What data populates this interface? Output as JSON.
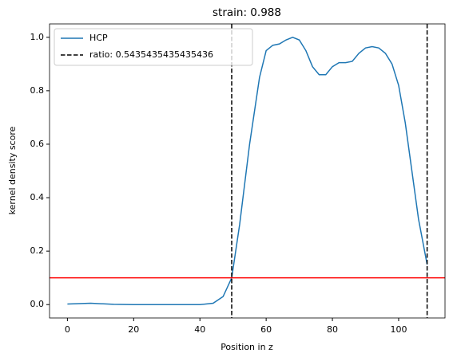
{
  "chart_data": {
    "type": "line",
    "title": "strain: 0.988",
    "x_label": "Position in z",
    "y_label": "kernel density score",
    "x": [
      0,
      7,
      14,
      20,
      30,
      40,
      44,
      47,
      49.6,
      52,
      55,
      58,
      60,
      62,
      64,
      66,
      68,
      70,
      72,
      74,
      76,
      78,
      80,
      82,
      84,
      86,
      88,
      90,
      92,
      94,
      96,
      98,
      100,
      102,
      104,
      106,
      108.6
    ],
    "series": [
      {
        "name": "HCP",
        "color": "#1f77b4",
        "values": [
          0.002,
          0.005,
          0.001,
          0,
          0,
          0,
          0.005,
          0.03,
          0.1,
          0.3,
          0.6,
          0.85,
          0.95,
          0.97,
          0.975,
          0.99,
          1.0,
          0.99,
          0.95,
          0.89,
          0.86,
          0.86,
          0.89,
          0.905,
          0.905,
          0.91,
          0.94,
          0.96,
          0.965,
          0.96,
          0.94,
          0.9,
          0.82,
          0.68,
          0.5,
          0.32,
          0.15
        ]
      }
    ],
    "vlines": {
      "name": "ratio: 0.5435435435435436",
      "color": "#000000",
      "values": [
        49.6,
        108.6
      ]
    },
    "hline": {
      "value": 0.1,
      "color": "#ff0000"
    },
    "xlim": [
      -5.4,
      114
    ],
    "xticks": [
      0,
      20,
      40,
      60,
      80,
      100
    ],
    "ylim": [
      -0.05,
      1.05
    ],
    "yticks": [
      {
        "value": 0,
        "label": "0.0"
      },
      {
        "value": 0.2,
        "label": "0.2"
      },
      {
        "value": 0.4,
        "label": "0.4"
      },
      {
        "value": 0.6,
        "label": "0.6"
      },
      {
        "value": 0.8,
        "label": "0.8"
      },
      {
        "value": 1,
        "label": "1.0"
      }
    ],
    "legend": "upper left"
  }
}
